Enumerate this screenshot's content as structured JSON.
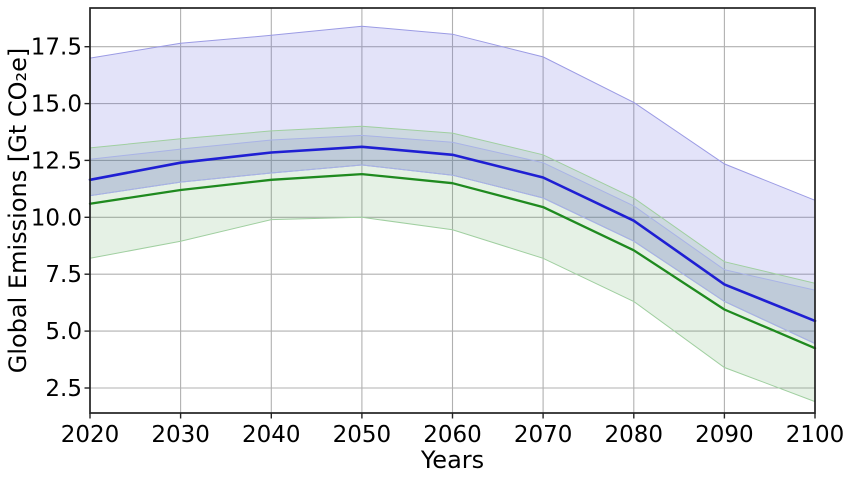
{
  "chart_data": {
    "type": "line",
    "title": "",
    "xlabel": "Years",
    "ylabel": "Global Emissions [Gt CO₂e]",
    "x": [
      2020,
      2030,
      2040,
      2050,
      2060,
      2070,
      2080,
      2090,
      2100
    ],
    "xlim": [
      2020,
      2100
    ],
    "ylim": [
      1.4,
      19.2
    ],
    "xticks": [
      2020,
      2030,
      2040,
      2050,
      2060,
      2070,
      2080,
      2090,
      2100
    ],
    "xtick_labels": [
      "2020",
      "2030",
      "2040",
      "2050",
      "2060",
      "2070",
      "2080",
      "2090",
      "2100"
    ],
    "yticks": [
      2.5,
      5.0,
      7.5,
      10.0,
      12.5,
      15.0,
      17.5
    ],
    "ytick_labels": [
      "2.5",
      "5.0",
      "7.5",
      "10.0",
      "12.5",
      "15.0",
      "17.5"
    ],
    "grid": true,
    "grid_color": "#b0b0b0",
    "axis_color": "#222222",
    "legend": "none",
    "series": [
      {
        "name": "green median emissions pathway",
        "color": "#1f8a1f",
        "width": 2.3,
        "values": [
          10.6,
          11.2,
          11.65,
          11.9,
          11.5,
          10.45,
          8.55,
          5.95,
          4.25
        ]
      },
      {
        "name": "blue median emissions pathway",
        "color": "#1f1fd3",
        "width": 2.6,
        "values": [
          11.65,
          12.4,
          12.85,
          13.1,
          12.75,
          11.75,
          9.85,
          7.05,
          5.45
        ]
      }
    ],
    "bands": [
      {
        "name": "blue wide uncertainty band",
        "fill": "rgba(105,105,225,0.19)",
        "edge": "#9b9be4",
        "upper": [
          17.0,
          17.65,
          18.0,
          18.4,
          18.05,
          17.05,
          15.05,
          12.35,
          10.75
        ],
        "lower": [
          10.95,
          11.55,
          11.95,
          12.3,
          11.85,
          10.85,
          8.95,
          6.3,
          4.45
        ]
      },
      {
        "name": "green uncertainty band",
        "fill": "rgba(95,165,95,0.16)",
        "edge": "#a0cfa0",
        "upper": [
          13.05,
          13.45,
          13.8,
          14.0,
          13.7,
          12.75,
          10.85,
          8.05,
          7.1
        ],
        "lower": [
          8.2,
          8.95,
          9.9,
          10.0,
          9.45,
          8.2,
          6.3,
          3.4,
          1.9
        ]
      },
      {
        "name": "blue narrow uncertainty band",
        "fill": "rgba(70,90,160,0.10)",
        "edge": "#a9b3e6",
        "upper": [
          12.55,
          13.0,
          13.4,
          13.6,
          13.3,
          12.4,
          10.5,
          7.7,
          6.8
        ],
        "lower": [
          10.95,
          11.55,
          11.95,
          12.3,
          11.85,
          10.85,
          8.95,
          6.3,
          4.45
        ]
      }
    ]
  }
}
